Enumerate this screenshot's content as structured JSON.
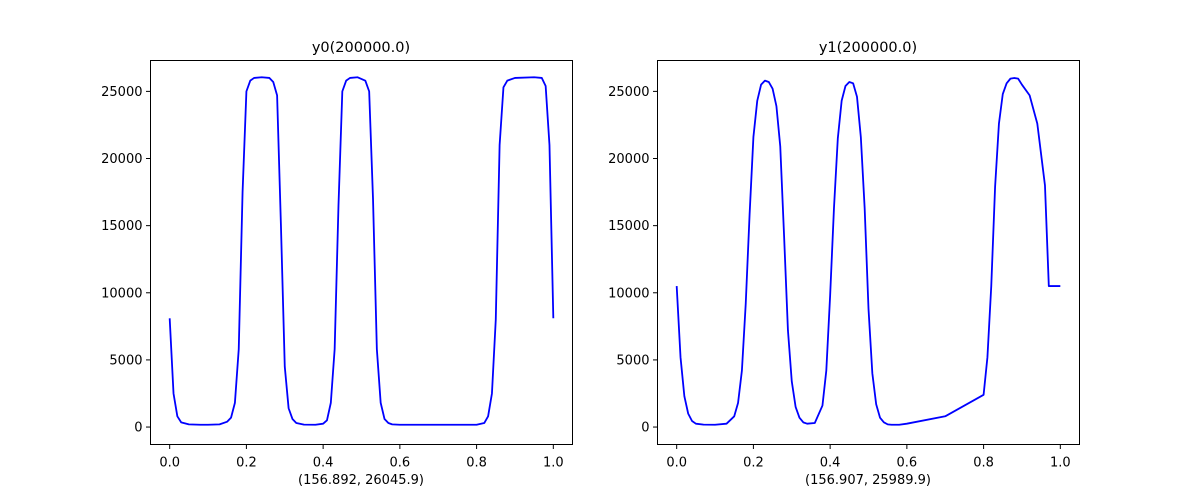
{
  "chart_data": [
    {
      "type": "line",
      "title": "y0(200000.0)",
      "xlabel": "(156.892, 26045.9)",
      "ylabel": "",
      "xlim": [
        -0.05,
        1.05
      ],
      "ylim": [
        -1300,
        27300
      ],
      "xticks": [
        0.0,
        0.2,
        0.4,
        0.6,
        0.8,
        1.0
      ],
      "xtick_labels": [
        "0.0",
        "0.2",
        "0.4",
        "0.6",
        "0.8",
        "1.0"
      ],
      "yticks": [
        0,
        5000,
        10000,
        15000,
        20000,
        25000
      ],
      "ytick_labels": [
        "0",
        "5000",
        "10000",
        "15000",
        "20000",
        "25000"
      ],
      "color": "#0000ff",
      "grid": false,
      "series": [
        {
          "x": [
            0.0,
            0.01,
            0.02,
            0.03,
            0.05,
            0.08,
            0.1,
            0.13,
            0.15,
            0.16,
            0.17,
            0.18,
            0.19,
            0.2,
            0.21,
            0.22,
            0.24,
            0.26,
            0.27,
            0.28,
            0.29,
            0.3,
            0.31,
            0.32,
            0.33,
            0.35,
            0.38,
            0.4,
            0.41,
            0.42,
            0.43,
            0.44,
            0.45,
            0.46,
            0.47,
            0.49,
            0.51,
            0.52,
            0.53,
            0.54,
            0.55,
            0.56,
            0.57,
            0.58,
            0.6,
            0.7,
            0.8,
            0.82,
            0.83,
            0.84,
            0.85,
            0.86,
            0.87,
            0.88,
            0.9,
            0.95,
            0.97,
            0.98,
            0.99,
            1.0
          ],
          "y": [
            8100,
            2500,
            800,
            350,
            200,
            170,
            170,
            200,
            400,
            700,
            1800,
            5800,
            17500,
            25000,
            25800,
            26000,
            26050,
            26000,
            25700,
            24700,
            15000,
            4500,
            1400,
            600,
            300,
            180,
            170,
            250,
            500,
            1800,
            5800,
            16500,
            25000,
            25800,
            26000,
            26050,
            25800,
            25000,
            17000,
            5800,
            1800,
            600,
            300,
            200,
            170,
            170,
            170,
            300,
            800,
            2500,
            8000,
            21000,
            25300,
            25800,
            26000,
            26050,
            26000,
            25400,
            21000,
            8100
          ]
        }
      ]
    },
    {
      "type": "line",
      "title": "y1(200000.0)",
      "xlabel": "(156.907, 25989.9)",
      "ylabel": "",
      "xlim": [
        -0.05,
        1.05
      ],
      "ylim": [
        -1300,
        27300
      ],
      "xticks": [
        0.0,
        0.2,
        0.4,
        0.6,
        0.8,
        1.0
      ],
      "xtick_labels": [
        "0.0",
        "0.2",
        "0.4",
        "0.6",
        "0.8",
        "1.0"
      ],
      "yticks": [
        0,
        5000,
        10000,
        15000,
        20000,
        25000
      ],
      "ytick_labels": [
        "0",
        "5000",
        "10000",
        "15000",
        "20000",
        "25000"
      ],
      "color": "#0000ff",
      "grid": false,
      "series": [
        {
          "x": [
            0.0,
            0.01,
            0.02,
            0.03,
            0.04,
            0.05,
            0.07,
            0.1,
            0.13,
            0.15,
            0.16,
            0.17,
            0.18,
            0.19,
            0.2,
            0.21,
            0.22,
            0.23,
            0.24,
            0.25,
            0.26,
            0.27,
            0.28,
            0.29,
            0.3,
            0.31,
            0.32,
            0.33,
            0.34,
            0.36,
            0.38,
            0.39,
            0.4,
            0.41,
            0.42,
            0.43,
            0.44,
            0.45,
            0.46,
            0.47,
            0.48,
            0.49,
            0.5,
            0.51,
            0.52,
            0.53,
            0.54,
            0.55,
            0.56,
            0.57,
            0.58,
            0.6,
            0.7,
            0.8,
            0.81,
            0.82,
            0.83,
            0.84,
            0.85,
            0.86,
            0.87,
            0.88,
            0.89,
            0.9,
            0.92,
            0.94,
            0.96,
            0.97,
            0.98,
            0.99,
            1.0
          ],
          "y": [
            10500,
            5200,
            2300,
            1000,
            450,
            250,
            180,
            170,
            250,
            800,
            1800,
            4200,
            9200,
            15800,
            21600,
            24300,
            25500,
            25800,
            25700,
            25200,
            23900,
            20900,
            14200,
            7200,
            3400,
            1500,
            700,
            350,
            250,
            300,
            1600,
            4200,
            9800,
            16300,
            21500,
            24300,
            25400,
            25700,
            25600,
            24600,
            21600,
            16300,
            8800,
            4000,
            1700,
            700,
            350,
            200,
            170,
            170,
            170,
            250,
            800,
            2400,
            5200,
            10500,
            17900,
            22600,
            24800,
            25600,
            25950,
            26000,
            25950,
            25500,
            24700,
            22600,
            18000,
            10500,
            10500,
            10500,
            10500
          ]
        }
      ]
    }
  ]
}
